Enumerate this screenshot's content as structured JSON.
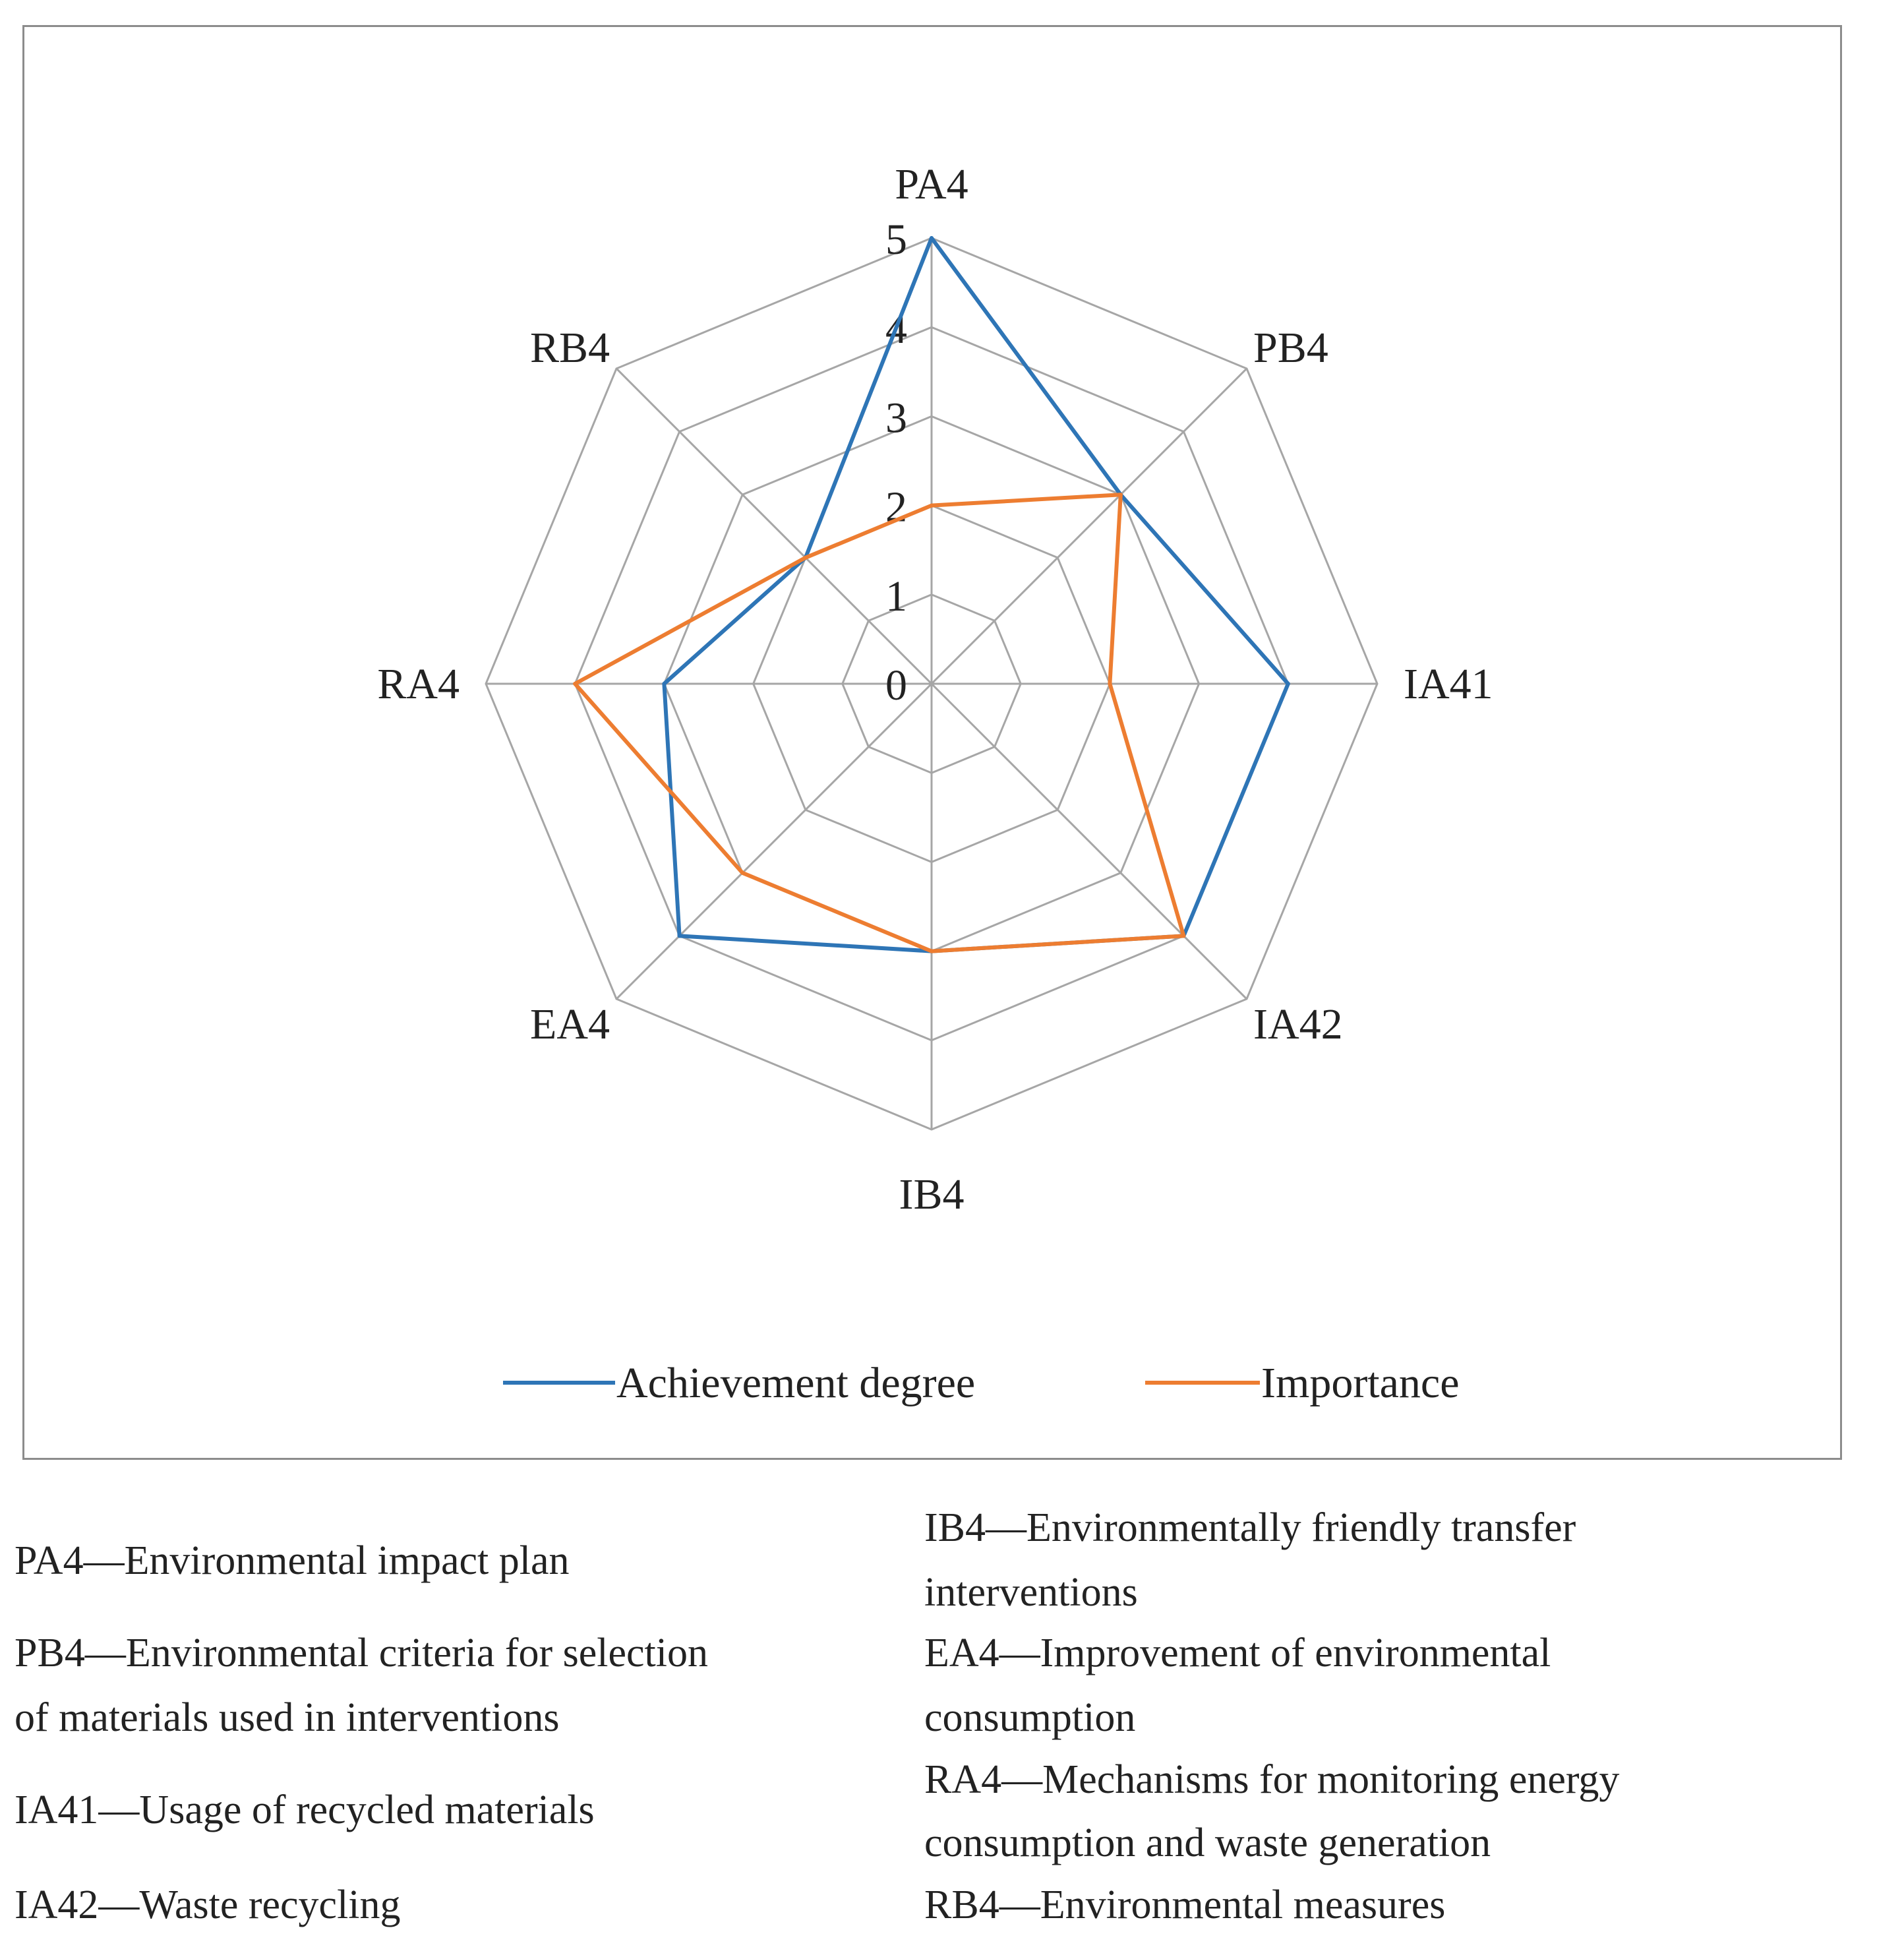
{
  "chart_data": {
    "type": "radar",
    "axes": [
      "PA4",
      "PB4",
      "IA41",
      "IA42",
      "IB4",
      "EA4",
      "RA4",
      "RB4"
    ],
    "scale_ticks": [
      "0",
      "1",
      "2",
      "3",
      "4",
      "5"
    ],
    "range": [
      0,
      5
    ],
    "series": [
      {
        "name": "Achievement degree",
        "color": "#2e75b6",
        "values": [
          5,
          3,
          4,
          4,
          3,
          4,
          3,
          2
        ]
      },
      {
        "name": "Importance",
        "color": "#ed7d31",
        "values": [
          2,
          3,
          2,
          4,
          3,
          3,
          4,
          2
        ]
      }
    ],
    "grid_color": "#a6a6a6",
    "legend_position": "bottom"
  },
  "descriptions": {
    "left": [
      "PA4—Environmental impact plan",
      "PB4—Environmental criteria for selection",
      "of materials used in interventions",
      "IA41—Usage of recycled materials",
      "IA42—Waste recycling"
    ],
    "right": [
      "IB4—Environmentally friendly transfer",
      "interventions",
      "EA4—Improvement of environmental",
      "consumption",
      "RA4—Mechanisms for monitoring energy",
      "consumption and waste generation",
      "RB4—Environmental measures"
    ]
  }
}
